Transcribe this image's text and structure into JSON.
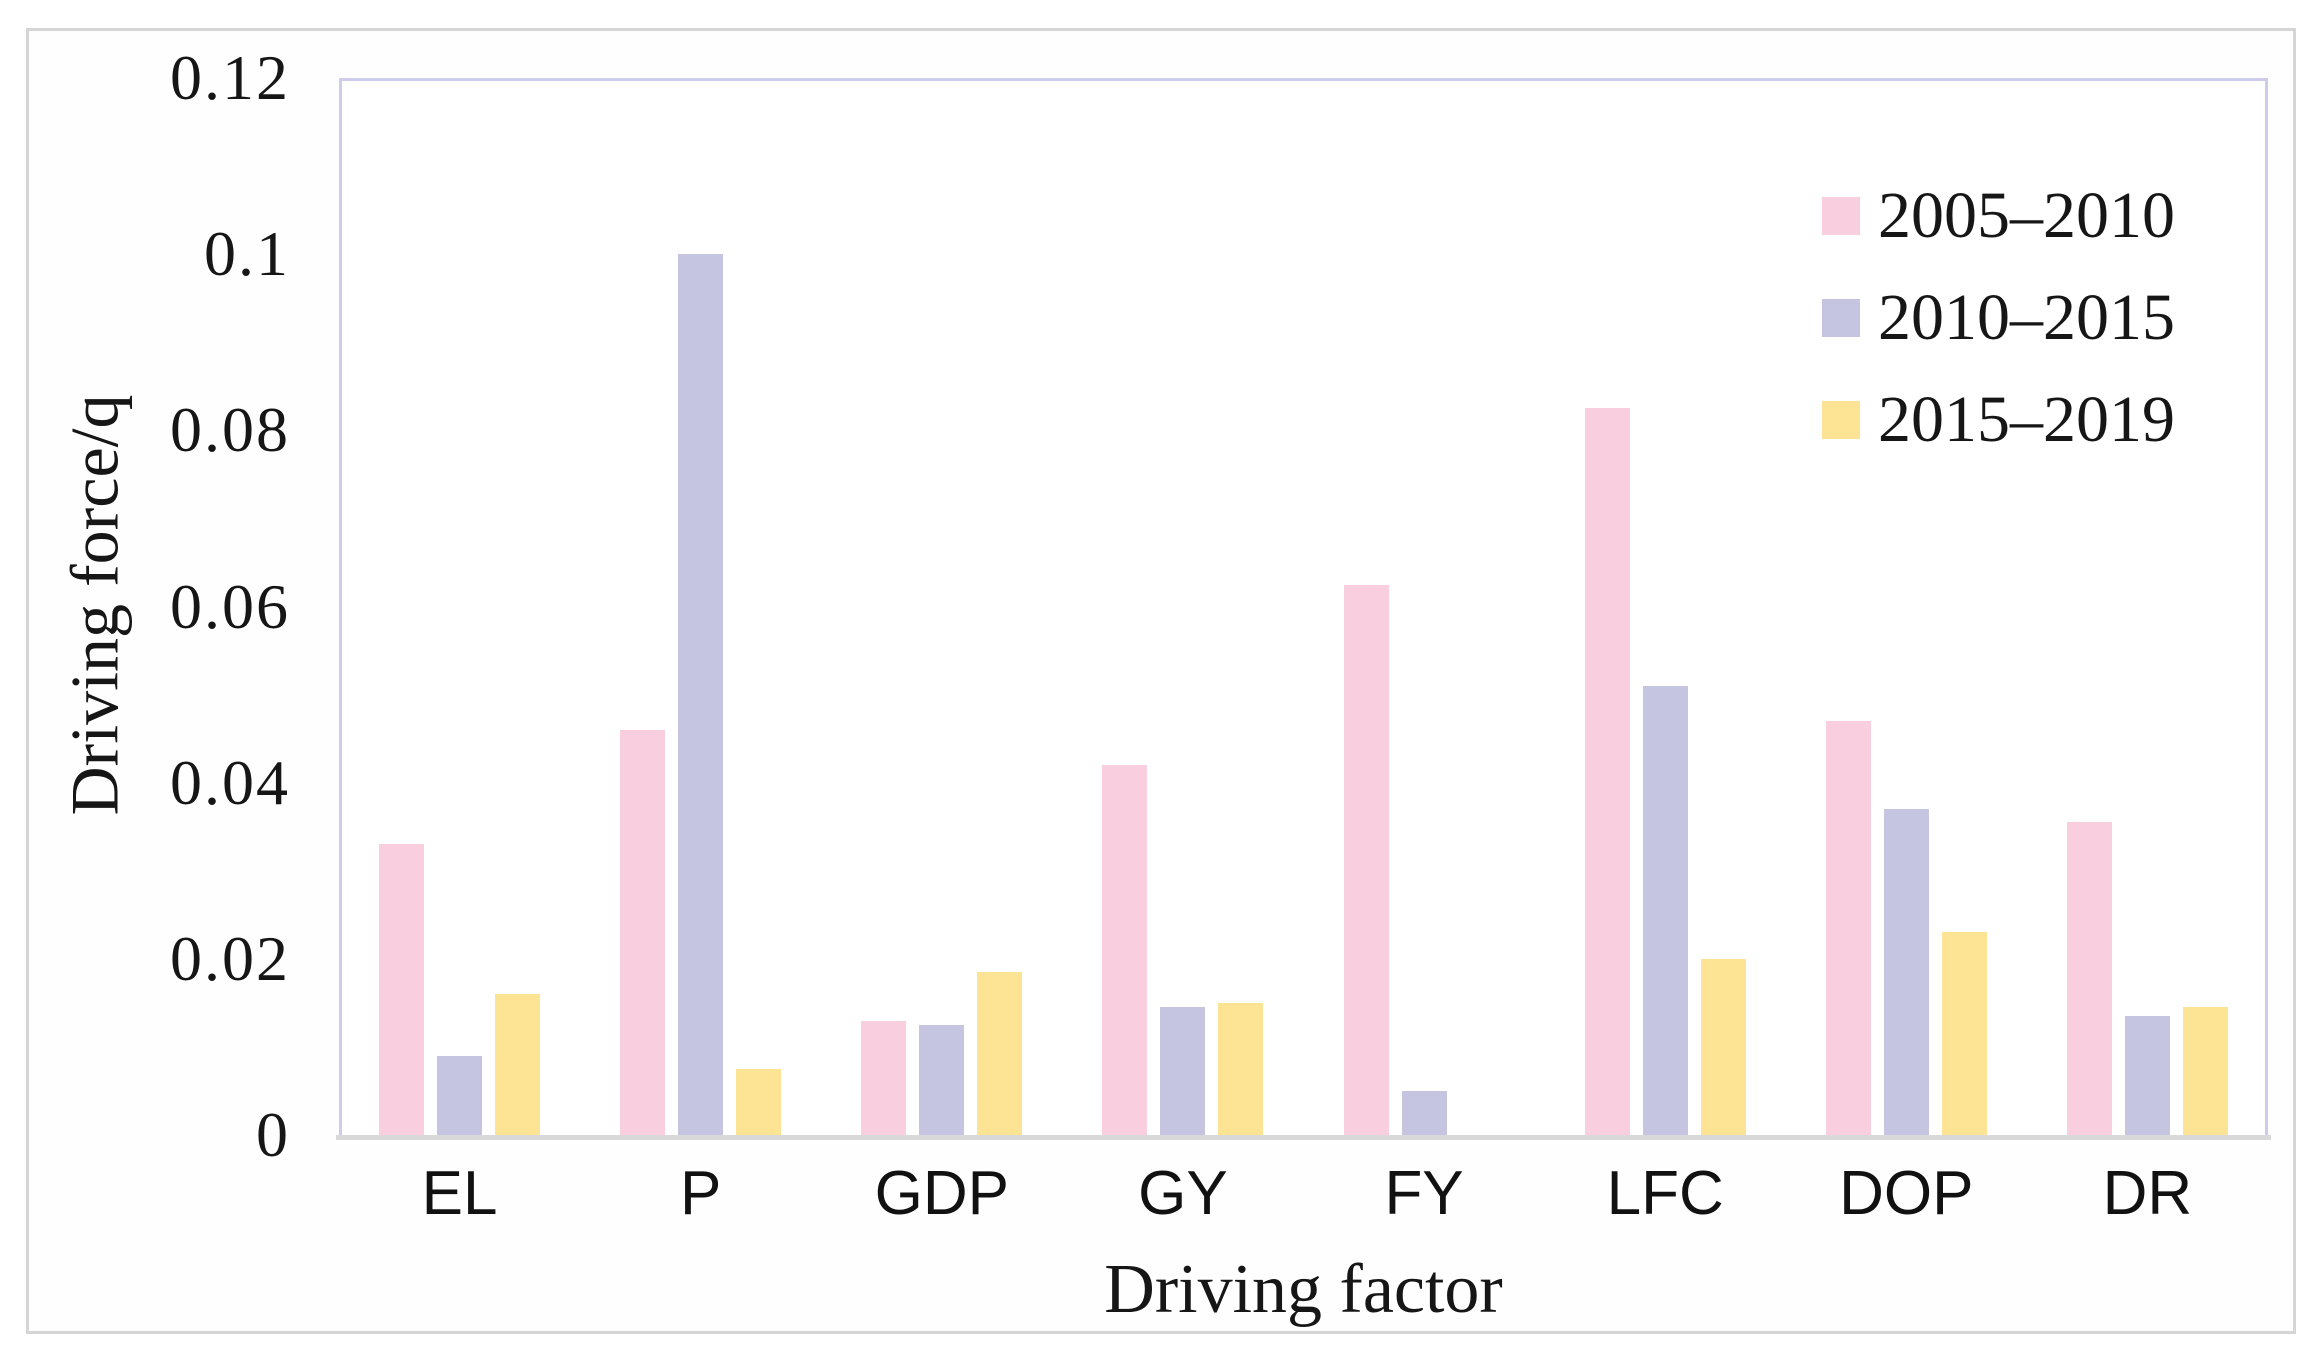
{
  "figure": {
    "background": "#ffffff",
    "outer_border_color": "#d5d5d5",
    "plot_border_color": "#cdccea",
    "axis_line_color": "#d9d9d9"
  },
  "chart_data": {
    "type": "bar",
    "title": "",
    "xlabel": "Driving factor",
    "ylabel": "Driving force/q",
    "categories": [
      "EL",
      "P",
      "GDP",
      "GY",
      "FY",
      "LFC",
      "DOP",
      "DR"
    ],
    "series": [
      {
        "name": "2005–2010",
        "color": "#f9cfdf",
        "values": [
          0.033,
          0.046,
          0.013,
          0.042,
          0.0625,
          0.0825,
          0.047,
          0.0355
        ]
      },
      {
        "name": "2010–2015",
        "color": "#c5c4e1",
        "values": [
          0.009,
          0.1,
          0.0125,
          0.0145,
          0.005,
          0.051,
          0.037,
          0.0135
        ]
      },
      {
        "name": "2015–2019",
        "color": "#fde495",
        "values": [
          0.016,
          0.0075,
          0.0185,
          0.015,
          0,
          0.02,
          0.023,
          0.0145
        ]
      }
    ],
    "ylim": [
      0,
      0.12
    ],
    "ytick_labels": [
      "0",
      "0.02",
      "0.04",
      "0.06",
      "0.08",
      "0.1",
      "0.12"
    ],
    "grid": false,
    "legend_position": "top-right"
  }
}
